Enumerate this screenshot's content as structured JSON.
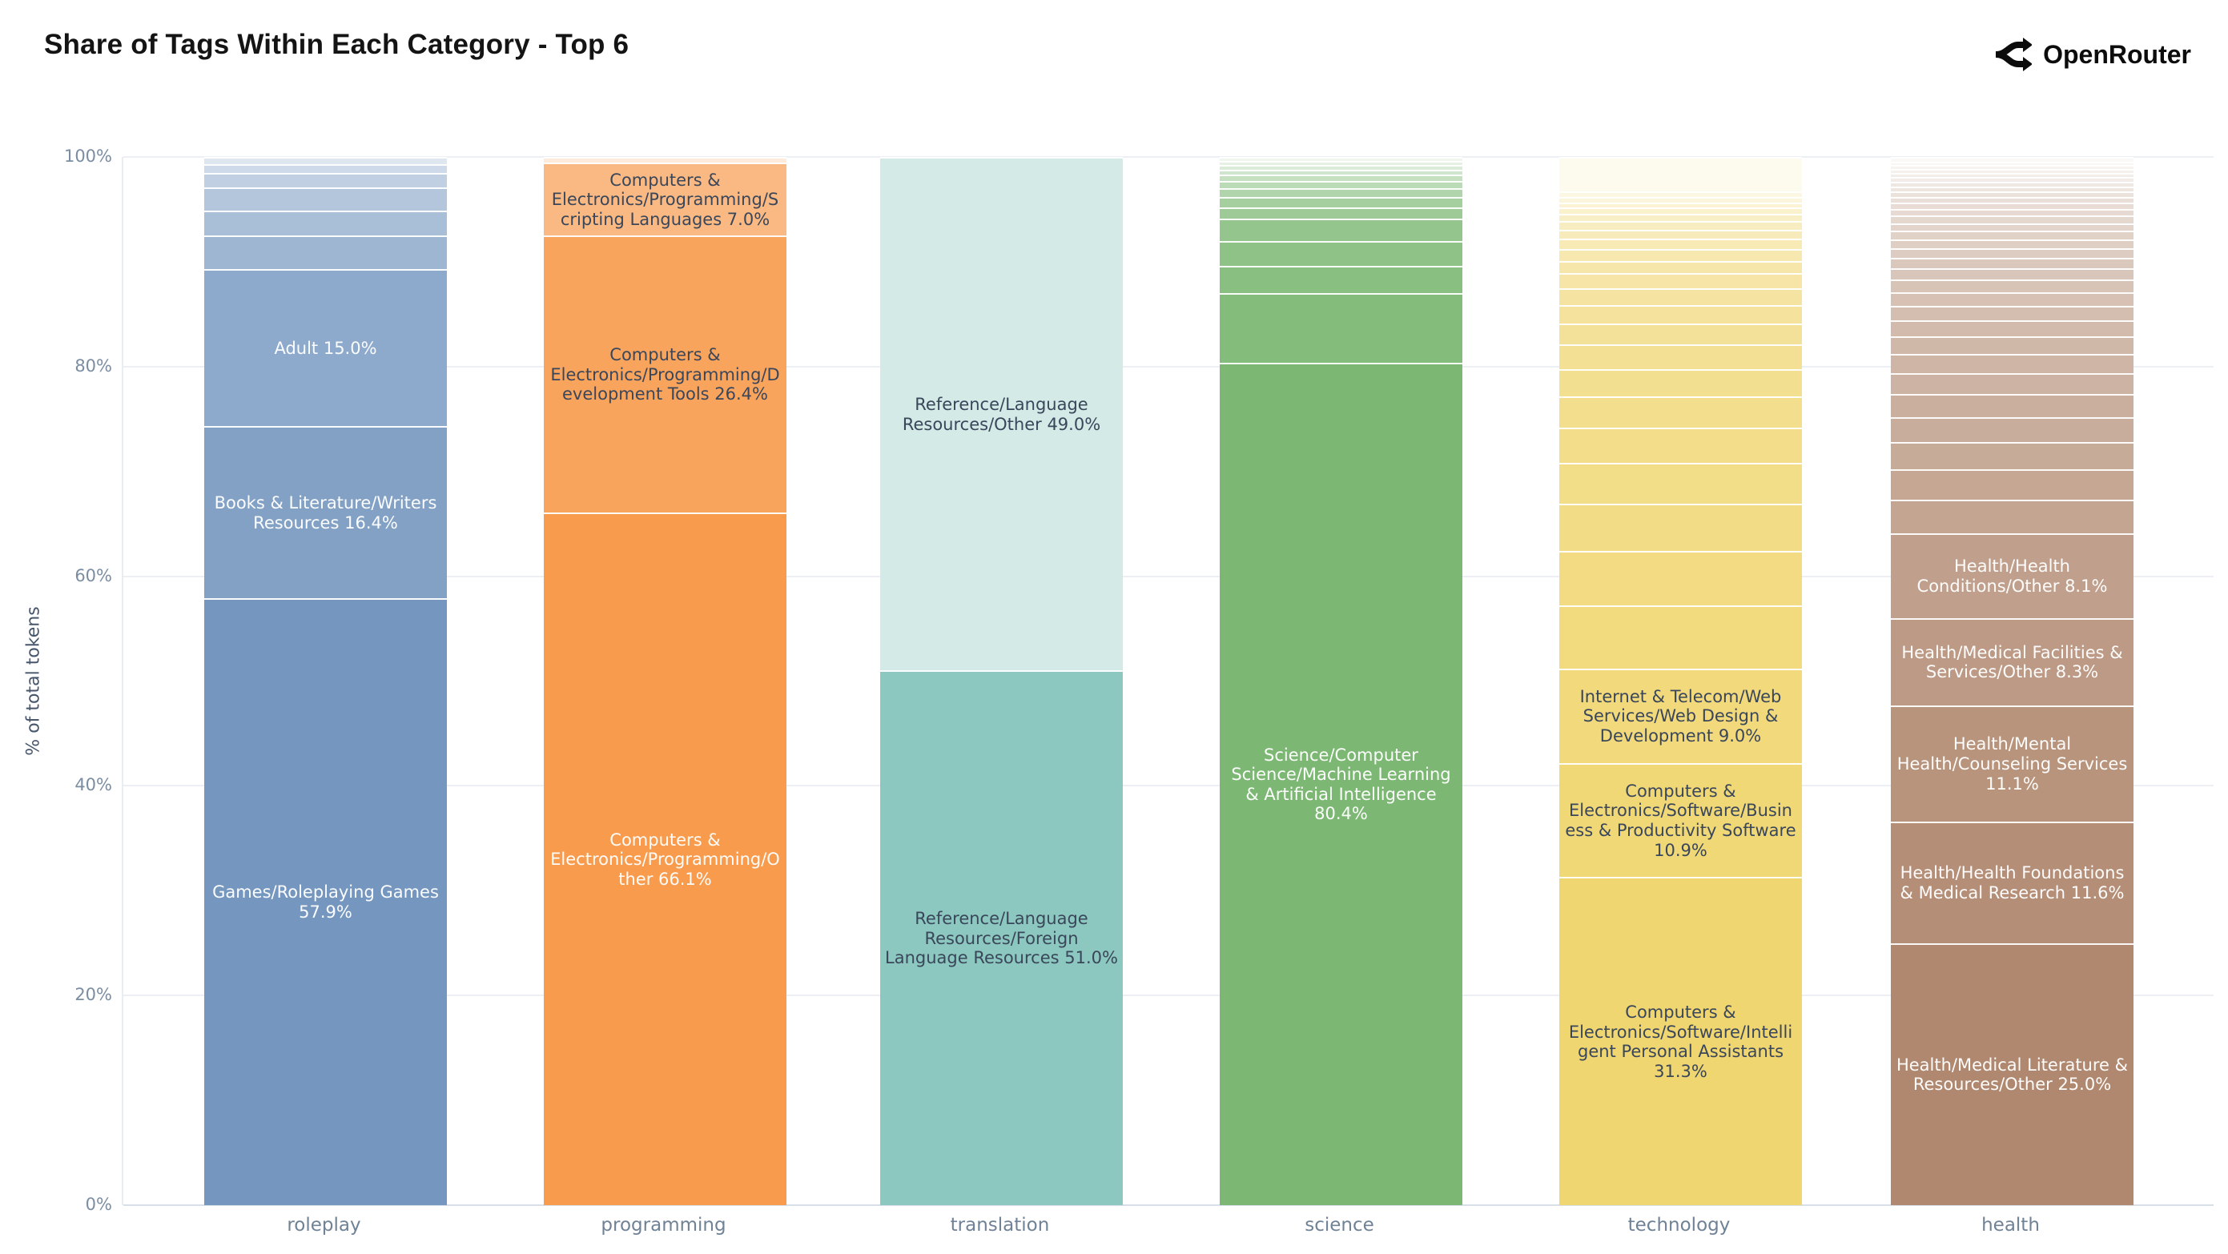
{
  "title": "Share of Tags Within Each Category - Top 6",
  "brand": {
    "name": "OpenRouter",
    "icon": "openrouter-fork-icon"
  },
  "y_axis": {
    "title": "% of total tokens",
    "ticks": [
      "0%",
      "20%",
      "40%",
      "60%",
      "80%",
      "100%"
    ],
    "tick_values": [
      0,
      20,
      40,
      60,
      80,
      100
    ]
  },
  "chart_data": {
    "type": "bar",
    "stacked": true,
    "grid": true,
    "legend": "none",
    "ylim": [
      0,
      100
    ],
    "ylabel": "% of total tokens",
    "xlabel": "",
    "categories": [
      "roleplay",
      "programming",
      "translation",
      "science",
      "technology",
      "health"
    ],
    "bars": [
      {
        "category": "roleplay",
        "base_color": "#7496bf",
        "segments": [
          {
            "label": "Games/Roleplaying Games 57.9%",
            "value": 57.9,
            "lighten": 0,
            "text": "light"
          },
          {
            "label": "Books & Literature/Writers Resources 16.4%",
            "value": 16.4,
            "lighten": 0.1,
            "text": "light"
          },
          {
            "label": "Adult 15.0%",
            "value": 15.0,
            "lighten": 0.18,
            "text": "light"
          },
          {
            "value": 3.2,
            "lighten": 0.3
          },
          {
            "value": 2.4,
            "lighten": 0.38
          },
          {
            "value": 2.2,
            "lighten": 0.46
          },
          {
            "value": 1.4,
            "lighten": 0.55
          },
          {
            "value": 0.8,
            "lighten": 0.65
          },
          {
            "value": 0.7,
            "lighten": 0.76
          }
        ]
      },
      {
        "category": "programming",
        "base_color": "#f89b4d",
        "segments": [
          {
            "label": "Computers & Electronics/Programming/Other 66.1%",
            "value": 66.1,
            "lighten": 0,
            "text": "light"
          },
          {
            "label": "Computers & Electronics/Programming/Development Tools 26.4%",
            "value": 26.4,
            "lighten": 0.09,
            "text": "dark"
          },
          {
            "label": "Computers & Electronics/Programming/Scripting Languages 7.0%",
            "value": 7.0,
            "lighten": 0.3,
            "text": "dark"
          },
          {
            "value": 0.5,
            "lighten": 0.8
          }
        ]
      },
      {
        "category": "translation",
        "base_color": "#8cc8bf",
        "segments": [
          {
            "label": "Reference/Language Resources/Foreign Language Resources 51.0%",
            "value": 51.0,
            "lighten": 0,
            "text": "dark"
          },
          {
            "label": "Reference/Language Resources/Other 49.0%",
            "value": 49.0,
            "lighten": 0.62,
            "text": "dark"
          }
        ]
      },
      {
        "category": "science",
        "base_color": "#7cb873",
        "segments": [
          {
            "label": "Science/Computer Science/Machine Learning & Artificial Intelligence 80.4%",
            "value": 80.4,
            "lighten": 0,
            "text": "light"
          },
          {
            "value": 6.6,
            "lighten": 0.06
          },
          {
            "value": 2.6,
            "lighten": 0.1
          },
          {
            "value": 2.4,
            "lighten": 0.14
          },
          {
            "value": 2.1,
            "lighten": 0.18
          },
          {
            "value": 1.1,
            "lighten": 0.25
          },
          {
            "value": 1.0,
            "lighten": 0.32
          },
          {
            "value": 0.8,
            "lighten": 0.4
          },
          {
            "value": 0.7,
            "lighten": 0.48
          },
          {
            "value": 0.6,
            "lighten": 0.56
          },
          {
            "value": 0.5,
            "lighten": 0.64
          },
          {
            "value": 0.45,
            "lighten": 0.72
          },
          {
            "value": 0.4,
            "lighten": 0.8
          },
          {
            "value": 0.35,
            "lighten": 0.88
          }
        ]
      },
      {
        "category": "technology",
        "base_color": "#f0d671",
        "segments": [
          {
            "label": "Computers & Electronics/Software/Intelligent Personal Assistants 31.3%",
            "value": 31.3,
            "lighten": 0,
            "text": "dark"
          },
          {
            "label": "Computers & Electronics/Software/Business & Productivity Software 10.9%",
            "value": 10.9,
            "lighten": 0.04,
            "text": "dark"
          },
          {
            "label": "Internet & Telecom/Web Services/Web Design & Development 9.0%",
            "value": 9.0,
            "lighten": 0.08,
            "text": "dark"
          },
          {
            "value": 6.0,
            "lighten": 0.1
          },
          {
            "value": 5.2,
            "lighten": 0.12
          },
          {
            "value": 4.5,
            "lighten": 0.14
          },
          {
            "value": 3.9,
            "lighten": 0.16
          },
          {
            "value": 3.4,
            "lighten": 0.18
          },
          {
            "value": 3.0,
            "lighten": 0.2
          },
          {
            "value": 2.6,
            "lighten": 0.22
          },
          {
            "value": 2.3,
            "lighten": 0.25
          },
          {
            "value": 2.0,
            "lighten": 0.28
          },
          {
            "value": 1.8,
            "lighten": 0.31
          },
          {
            "value": 1.6,
            "lighten": 0.34
          },
          {
            "value": 1.4,
            "lighten": 0.37
          },
          {
            "value": 1.2,
            "lighten": 0.4
          },
          {
            "value": 1.1,
            "lighten": 0.44
          },
          {
            "value": 1.0,
            "lighten": 0.48
          },
          {
            "value": 0.9,
            "lighten": 0.52
          },
          {
            "value": 0.8,
            "lighten": 0.56
          },
          {
            "value": 0.7,
            "lighten": 0.6
          },
          {
            "value": 0.6,
            "lighten": 0.65
          },
          {
            "value": 0.5,
            "lighten": 0.7
          },
          {
            "value": 0.5,
            "lighten": 0.75
          },
          {
            "value": 0.5,
            "lighten": 0.8
          },
          {
            "value": 3.3,
            "lighten": 0.88
          }
        ]
      },
      {
        "category": "health",
        "base_color": "#b0886f",
        "segments": [
          {
            "label": "Health/Medical Literature & Resources/Other 25.0%",
            "value": 25.0,
            "lighten": 0,
            "text": "light"
          },
          {
            "label": "Health/Health Foundations & Medical Research 11.6%",
            "value": 11.6,
            "lighten": 0.05,
            "text": "light"
          },
          {
            "label": "Health/Mental Health/Counseling Services 11.1%",
            "value": 11.1,
            "lighten": 0.1,
            "text": "light"
          },
          {
            "label": "Health/Medical Facilities & Services/Other 8.3%",
            "value": 8.3,
            "lighten": 0.15,
            "text": "light"
          },
          {
            "label": "Health/Health Conditions/Other 8.1%",
            "value": 8.1,
            "lighten": 0.2,
            "text": "light"
          },
          {
            "value": 3.2,
            "lighten": 0.24
          },
          {
            "value": 2.9,
            "lighten": 0.26
          },
          {
            "value": 2.6,
            "lighten": 0.29
          },
          {
            "value": 2.4,
            "lighten": 0.31
          },
          {
            "value": 2.2,
            "lighten": 0.33
          },
          {
            "value": 2.0,
            "lighten": 0.36
          },
          {
            "value": 1.8,
            "lighten": 0.38
          },
          {
            "value": 1.7,
            "lighten": 0.4
          },
          {
            "value": 1.5,
            "lighten": 0.43
          },
          {
            "value": 1.4,
            "lighten": 0.45
          },
          {
            "value": 1.3,
            "lighten": 0.48
          },
          {
            "value": 1.2,
            "lighten": 0.5
          },
          {
            "value": 1.1,
            "lighten": 0.52
          },
          {
            "value": 1.0,
            "lighten": 0.54
          },
          {
            "value": 0.9,
            "lighten": 0.57
          },
          {
            "value": 0.85,
            "lighten": 0.59
          },
          {
            "value": 0.8,
            "lighten": 0.62
          },
          {
            "value": 0.75,
            "lighten": 0.64
          },
          {
            "value": 0.7,
            "lighten": 0.66
          },
          {
            "value": 0.65,
            "lighten": 0.69
          },
          {
            "value": 0.6,
            "lighten": 0.71
          },
          {
            "value": 0.55,
            "lighten": 0.73
          },
          {
            "value": 0.5,
            "lighten": 0.76
          },
          {
            "value": 0.5,
            "lighten": 0.78
          },
          {
            "value": 0.45,
            "lighten": 0.8
          },
          {
            "value": 0.45,
            "lighten": 0.83
          },
          {
            "value": 0.4,
            "lighten": 0.85
          },
          {
            "value": 0.4,
            "lighten": 0.87
          },
          {
            "value": 0.35,
            "lighten": 0.9
          },
          {
            "value": 0.35,
            "lighten": 0.92
          },
          {
            "value": 0.4,
            "lighten": 0.95
          }
        ]
      }
    ]
  }
}
